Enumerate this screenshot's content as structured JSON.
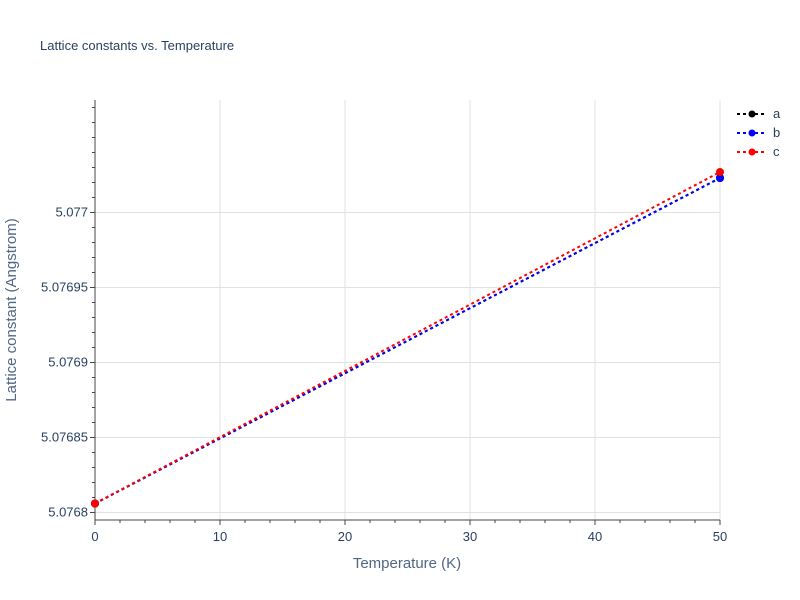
{
  "chart_data": {
    "type": "line",
    "title": "Lattice constants vs. Temperature",
    "xlabel": "Temperature (K)",
    "ylabel": "Lattice constant (Angstrom)",
    "xlim": [
      0,
      50
    ],
    "ylim": [
      5.076795,
      5.077075
    ],
    "x_ticks": [
      0,
      10,
      20,
      30,
      40,
      50
    ],
    "x_tick_labels": [
      "0",
      "10",
      "20",
      "30",
      "40",
      "50"
    ],
    "y_ticks": [
      5.0768,
      5.07685,
      5.0769,
      5.07695,
      5.077
    ],
    "y_tick_labels": [
      "5.0768",
      "5.07685",
      "5.0769",
      "5.07695",
      "5.077"
    ],
    "grid": true,
    "legend_position": "top-right",
    "series": [
      {
        "name": "a",
        "color": "#000000",
        "x": [
          0,
          50
        ],
        "y": [
          5.076806,
          5.077023
        ]
      },
      {
        "name": "b",
        "color": "#0000ff",
        "x": [
          0,
          50
        ],
        "y": [
          5.076806,
          5.077023
        ]
      },
      {
        "name": "c",
        "color": "#ff0000",
        "x": [
          0,
          50
        ],
        "y": [
          5.076806,
          5.077027
        ]
      }
    ]
  }
}
